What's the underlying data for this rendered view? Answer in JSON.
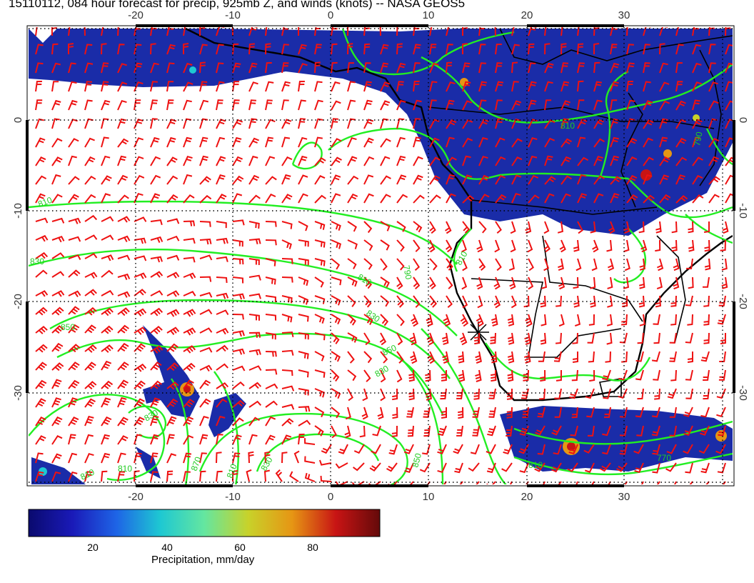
{
  "title": "15110112, 084 hour forecast for precip, 925mb Z, and winds (knots) -- NASA GEOS5",
  "map": {
    "lon_ticks": [
      "-20",
      "-10",
      "0",
      "10",
      "20",
      "30"
    ],
    "lat_ticks": [
      "0",
      "-10",
      "-20",
      "-30"
    ],
    "contour_labels": [
      "810",
      "830",
      "850",
      "850",
      "830",
      "810",
      "790",
      "810",
      "830",
      "850",
      "870",
      "830",
      "810",
      "810",
      "810",
      "830",
      "810",
      "810",
      "790",
      "770"
    ],
    "colors": {
      "precip_fill": "#1a2ca8",
      "contour": "#22ee22",
      "wind_barb": "#ee1111",
      "coast": "#000000",
      "grid": "#000000"
    }
  },
  "colorbar": {
    "ticks": [
      "20",
      "40",
      "60",
      "80"
    ],
    "caption": "Precipitation, mm/day",
    "range": [
      0,
      100
    ],
    "stops": [
      "#0a0a6e",
      "#1a1ab8",
      "#1e64e6",
      "#1ec8d2",
      "#64e6a0",
      "#c8d22a",
      "#e69614",
      "#c81414",
      "#640a0a"
    ]
  }
}
